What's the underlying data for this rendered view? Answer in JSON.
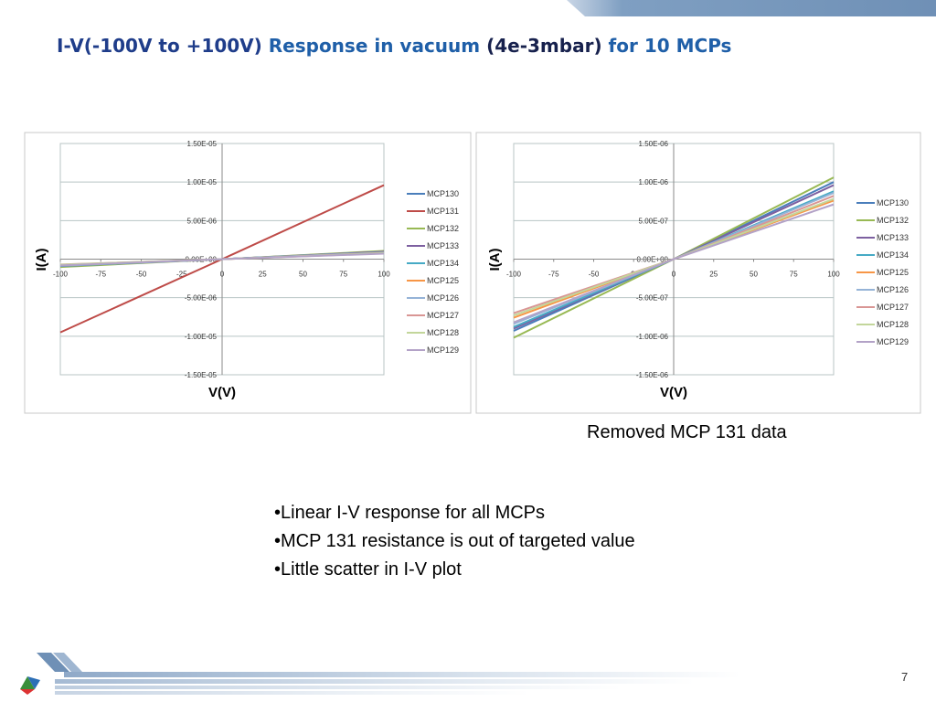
{
  "slide": {
    "title": [
      {
        "text": "I-V(-100V to +100V)",
        "color": "#1f3d8a"
      },
      {
        "text": " Response in vacuum ",
        "color": "#1f5fa8"
      },
      {
        "text": "(4e-3mbar)",
        "color": "#17214d"
      },
      {
        "text": " for 10 MCPs",
        "color": "#1f5fa8"
      }
    ],
    "note": "Removed MCP 131 data",
    "bullets": [
      "•Linear I-V response for all MCPs",
      "•MCP 131 resistance is out of targeted value",
      "•Little scatter in I-V plot"
    ],
    "page_number": "7"
  },
  "chart_data": [
    {
      "type": "line",
      "x_label": "V(V)",
      "y_label": "I(A)",
      "grid": true,
      "legend": "right",
      "x": [
        -100,
        0,
        100
      ],
      "xlim": [
        -100,
        100
      ],
      "xticks": [
        -100,
        -75,
        -50,
        -25,
        0,
        25,
        50,
        75,
        100
      ],
      "ylim": [
        -1.5e-05,
        1.5e-05
      ],
      "yticks": [
        {
          "value": -1.5e-05,
          "label": "-1.50E-05"
        },
        {
          "value": -1e-05,
          "label": "-1.00E-05"
        },
        {
          "value": -5e-06,
          "label": "-5.00E-06"
        },
        {
          "value": 0,
          "label": "0.00E+00"
        },
        {
          "value": 5e-06,
          "label": "5.00E-06"
        },
        {
          "value": 1e-05,
          "label": "1.00E-05"
        },
        {
          "value": 1.5e-05,
          "label": "1.50E-05"
        }
      ],
      "series": [
        {
          "name": "MCP130",
          "color": "#4a7ebb",
          "values": [
            -9.3e-07,
            0,
            1e-06
          ]
        },
        {
          "name": "MCP131",
          "color": "#be4b48",
          "values": [
            -9.5e-06,
            0,
            9.6e-06
          ]
        },
        {
          "name": "MCP132",
          "color": "#98b954",
          "values": [
            -1.02e-06,
            0,
            1.06e-06
          ]
        },
        {
          "name": "MCP133",
          "color": "#7d60a0",
          "values": [
            -9e-07,
            0,
            9.6e-07
          ]
        },
        {
          "name": "MCP134",
          "color": "#46aac5",
          "values": [
            -8.8e-07,
            0,
            8.8e-07
          ]
        },
        {
          "name": "MCP125",
          "color": "#f79646",
          "values": [
            -7.6e-07,
            0,
            7.6e-07
          ]
        },
        {
          "name": "MCP126",
          "color": "#95b3d7",
          "values": [
            -8.4e-07,
            0,
            8.6e-07
          ]
        },
        {
          "name": "MCP127",
          "color": "#d99694",
          "values": [
            -7e-07,
            0,
            8.2e-07
          ]
        },
        {
          "name": "MCP128",
          "color": "#c3d69b",
          "values": [
            -7.3e-07,
            0,
            7.8e-07
          ]
        },
        {
          "name": "MCP129",
          "color": "#b3a2c7",
          "values": [
            -8.2e-07,
            0,
            7.1e-07
          ]
        }
      ]
    },
    {
      "type": "line",
      "x_label": "V(V)",
      "y_label": "I(A)",
      "grid": true,
      "legend": "right",
      "x": [
        -100,
        0,
        100
      ],
      "xlim": [
        -100,
        100
      ],
      "xticks": [
        -100,
        -75,
        -50,
        -25,
        0,
        25,
        50,
        75,
        100
      ],
      "ylim": [
        -1.5e-06,
        1.5e-06
      ],
      "yticks": [
        {
          "value": -1.5e-06,
          "label": "-1.50E-06"
        },
        {
          "value": -1e-06,
          "label": "-1.00E-06"
        },
        {
          "value": -5e-07,
          "label": "-5.00E-07"
        },
        {
          "value": 0,
          "label": "0.00E+00"
        },
        {
          "value": 5e-07,
          "label": "5.00E-07"
        },
        {
          "value": 1e-06,
          "label": "1.00E-06"
        },
        {
          "value": 1.5e-06,
          "label": "1.50E-06"
        }
      ],
      "series": [
        {
          "name": "MCP130",
          "color": "#4a7ebb",
          "values": [
            -9.3e-07,
            0,
            1e-06
          ]
        },
        {
          "name": "MCP132",
          "color": "#98b954",
          "values": [
            -1.02e-06,
            0,
            1.06e-06
          ]
        },
        {
          "name": "MCP133",
          "color": "#7d60a0",
          "values": [
            -9e-07,
            0,
            9.6e-07
          ]
        },
        {
          "name": "MCP134",
          "color": "#46aac5",
          "values": [
            -8.8e-07,
            0,
            8.8e-07
          ]
        },
        {
          "name": "MCP125",
          "color": "#f79646",
          "values": [
            -7.6e-07,
            0,
            7.6e-07
          ]
        },
        {
          "name": "MCP126",
          "color": "#95b3d7",
          "values": [
            -8.4e-07,
            0,
            8.6e-07
          ]
        },
        {
          "name": "MCP127",
          "color": "#d99694",
          "values": [
            -7e-07,
            0,
            8.2e-07
          ]
        },
        {
          "name": "MCP128",
          "color": "#c3d69b",
          "values": [
            -7.3e-07,
            0,
            7.8e-07
          ]
        },
        {
          "name": "MCP129",
          "color": "#b3a2c7",
          "values": [
            -8.2e-07,
            0,
            7.1e-07
          ]
        }
      ]
    }
  ]
}
